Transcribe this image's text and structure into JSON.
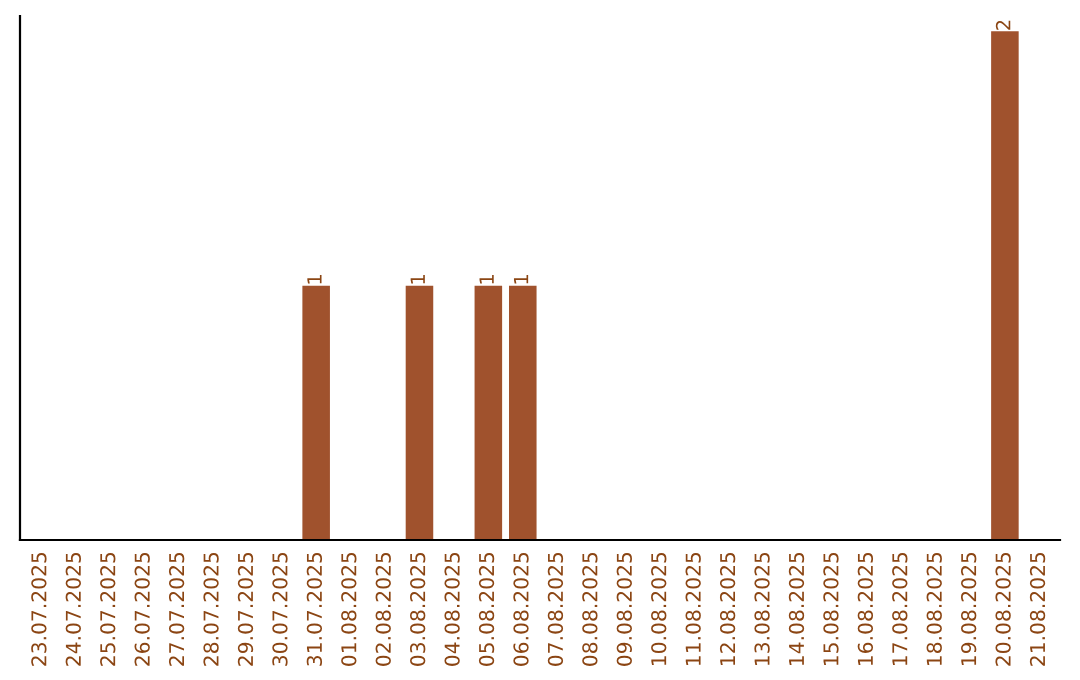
{
  "chart_data": {
    "type": "bar",
    "categories": [
      "23.07.2025",
      "24.07.2025",
      "25.07.2025",
      "26.07.2025",
      "27.07.2025",
      "28.07.2025",
      "29.07.2025",
      "30.07.2025",
      "31.07.2025",
      "01.08.2025",
      "02.08.2025",
      "03.08.2025",
      "04.08.2025",
      "05.08.2025",
      "06.08.2025",
      "07.08.2025",
      "08.08.2025",
      "09.08.2025",
      "10.08.2025",
      "11.08.2025",
      "12.08.2025",
      "13.08.2025",
      "14.08.2025",
      "15.08.2025",
      "16.08.2025",
      "17.08.2025",
      "18.08.2025",
      "19.08.2025",
      "20.08.2025",
      "21.08.2025"
    ],
    "values": [
      0,
      0,
      0,
      0,
      0,
      0,
      0,
      0,
      1,
      0,
      0,
      1,
      0,
      1,
      1,
      0,
      0,
      0,
      0,
      0,
      0,
      0,
      0,
      0,
      0,
      0,
      0,
      0,
      2,
      0
    ],
    "value_labels": [
      null,
      null,
      null,
      null,
      null,
      null,
      null,
      null,
      "1",
      null,
      null,
      "1",
      null,
      "1",
      "1",
      null,
      null,
      null,
      null,
      null,
      null,
      null,
      null,
      null,
      null,
      null,
      null,
      null,
      "2",
      null
    ],
    "color": "#a0522d",
    "grid": false,
    "legend": false
  }
}
